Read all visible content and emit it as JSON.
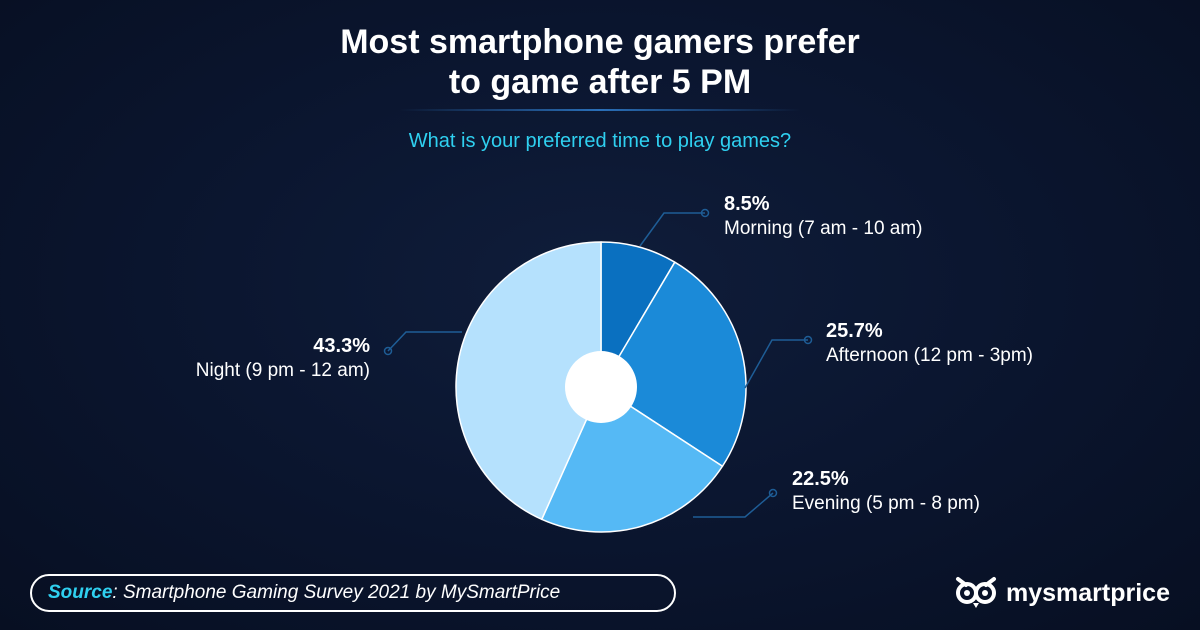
{
  "header": {
    "title_line1": "Most smartphone gamers prefer",
    "title_line2": "to game after 5 PM",
    "subtitle": "What is your preferred time to play games?"
  },
  "chart_data": {
    "type": "pie",
    "title": "Most smartphone gamers prefer to game after 5 PM",
    "subtitle": "What is your preferred time to play games?",
    "slices": [
      {
        "label": "Morning (7 am - 10 am)",
        "value": 8.5,
        "value_label": "8.5%",
        "color": "#0a70c0"
      },
      {
        "label": "Afternoon (12 pm - 3pm)",
        "value": 25.7,
        "value_label": "25.7%",
        "color": "#1b8ad8"
      },
      {
        "label": "Evening (5 pm - 8 pm)",
        "value": 22.5,
        "value_label": "22.5%",
        "color": "#55b9f5"
      },
      {
        "label": "Night (9 pm - 12 am)",
        "value": 43.3,
        "value_label": "43.3%",
        "color": "#b5e1fd"
      }
    ],
    "center_hole_color": "#ffffff",
    "leader_color": "#1e5d96"
  },
  "footer": {
    "source_key": "Source",
    "source_text": ": Smartphone Gaming Survey 2021 by MySmartPrice",
    "brand": "mysmartprice"
  },
  "colors": {
    "background": "#0b1630",
    "accent": "#2fd0f0",
    "text": "#ffffff"
  }
}
